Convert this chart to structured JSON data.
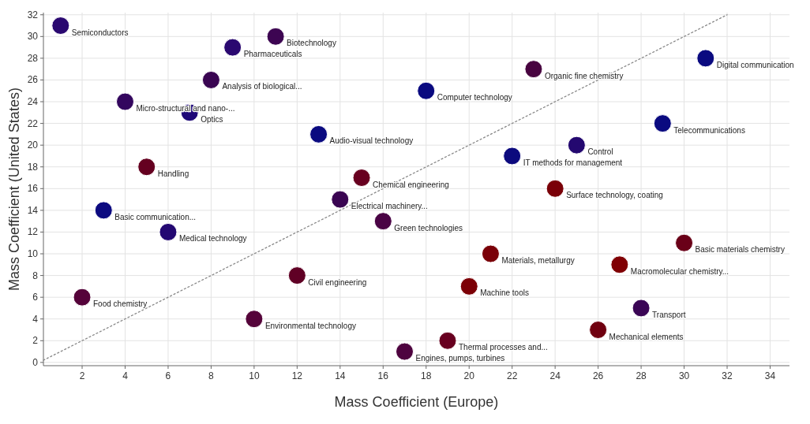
{
  "chart_data": {
    "type": "scatter",
    "xlabel": "Mass Coefficient (Europe)",
    "ylabel": "Mass Coefficient (United States)",
    "xlim": [
      0.2,
      34.9
    ],
    "ylim": [
      -0.3,
      32.2
    ],
    "xticks": [
      2,
      4,
      6,
      8,
      10,
      12,
      14,
      16,
      18,
      20,
      22,
      24,
      26,
      28,
      30,
      32,
      34
    ],
    "yticks": [
      0,
      2,
      4,
      6,
      8,
      10,
      12,
      14,
      16,
      18,
      20,
      22,
      24,
      26,
      28,
      30,
      32
    ],
    "grid": true,
    "marker": "circle",
    "series": [
      {
        "type": "line",
        "line_style": "dotted",
        "color": "#888888",
        "marker": "none",
        "x": [
          0.2,
          32
        ],
        "values": [
          0.2,
          32
        ]
      },
      {
        "x": [
          1,
          11,
          9,
          8,
          4,
          7,
          13,
          18,
          23,
          31,
          29,
          25,
          22,
          24,
          15,
          14,
          16,
          5,
          3,
          6,
          21,
          30,
          27,
          12,
          20,
          2,
          10,
          28,
          26,
          19,
          17
        ],
        "values": [
          31,
          30,
          29,
          26,
          24,
          23,
          21,
          25,
          27,
          28,
          22,
          20,
          19,
          16,
          17,
          15,
          13,
          18,
          14,
          12,
          10,
          11,
          9,
          8,
          7,
          6,
          4,
          5,
          3,
          2,
          1
        ],
        "colors": [
          "#2a0870",
          "#3d0552",
          "#2a0870",
          "#3a0552",
          "#33065e",
          "#1e0878",
          "#0a0a80",
          "#0a0a80",
          "#480340",
          "#0a0a80",
          "#0a0a80",
          "#240870",
          "#0c0a7e",
          "#7a0008",
          "#680020",
          "#3a0552",
          "#4a0345",
          "#650020",
          "#0c0a80",
          "#230872",
          "#7a0008",
          "#6a0018",
          "#800004",
          "#600025",
          "#7c0006",
          "#55033a",
          "#55033a",
          "#3a0555",
          "#700010",
          "#680020",
          "#4e033f"
        ]
      }
    ],
    "annotations": [
      {
        "text": "Semiconductors",
        "x": 1,
        "y": 31
      },
      {
        "text": "Biotechnology",
        "x": 11,
        "y": 30
      },
      {
        "text": "Pharmaceuticals",
        "x": 9,
        "y": 29
      },
      {
        "text": "Analysis of biological...",
        "x": 8,
        "y": 26
      },
      {
        "text": "Micro-structural and nano-...",
        "x": 4,
        "y": 24
      },
      {
        "text": "Optics",
        "x": 7,
        "y": 23
      },
      {
        "text": "Audio-visual technology",
        "x": 13,
        "y": 21
      },
      {
        "text": "Computer technology",
        "x": 18,
        "y": 25
      },
      {
        "text": "Organic fine chemistry",
        "x": 23,
        "y": 27
      },
      {
        "text": "Digital communication",
        "x": 31,
        "y": 28
      },
      {
        "text": "Telecommunications",
        "x": 29,
        "y": 22
      },
      {
        "text": "Control",
        "x": 25,
        "y": 20
      },
      {
        "text": "IT methods for management",
        "x": 22,
        "y": 19
      },
      {
        "text": "Surface technology, coating",
        "x": 24,
        "y": 16
      },
      {
        "text": "Chemical engineering",
        "x": 15,
        "y": 17
      },
      {
        "text": "Electrical machinery...",
        "x": 14,
        "y": 15
      },
      {
        "text": "Green technologies",
        "x": 16,
        "y": 13
      },
      {
        "text": "Handling",
        "x": 5,
        "y": 18
      },
      {
        "text": "Basic communication...",
        "x": 3,
        "y": 14
      },
      {
        "text": "Medical technology",
        "x": 6,
        "y": 12
      },
      {
        "text": "Materials, metallurgy",
        "x": 21,
        "y": 10
      },
      {
        "text": "Basic materials chemistry",
        "x": 30,
        "y": 11
      },
      {
        "text": "Macromolecular chemistry...",
        "x": 27,
        "y": 9
      },
      {
        "text": "Civil engineering",
        "x": 12,
        "y": 8
      },
      {
        "text": "Machine tools",
        "x": 20,
        "y": 7
      },
      {
        "text": "Food chemistry",
        "x": 2,
        "y": 6
      },
      {
        "text": "Environmental technology",
        "x": 10,
        "y": 4
      },
      {
        "text": "Transport",
        "x": 28,
        "y": 5
      },
      {
        "text": "Mechanical elements",
        "x": 26,
        "y": 3
      },
      {
        "text": "Thermal processes and...",
        "x": 19,
        "y": 2
      },
      {
        "text": "Engines, pumps, turbines",
        "x": 17,
        "y": 1
      }
    ]
  }
}
